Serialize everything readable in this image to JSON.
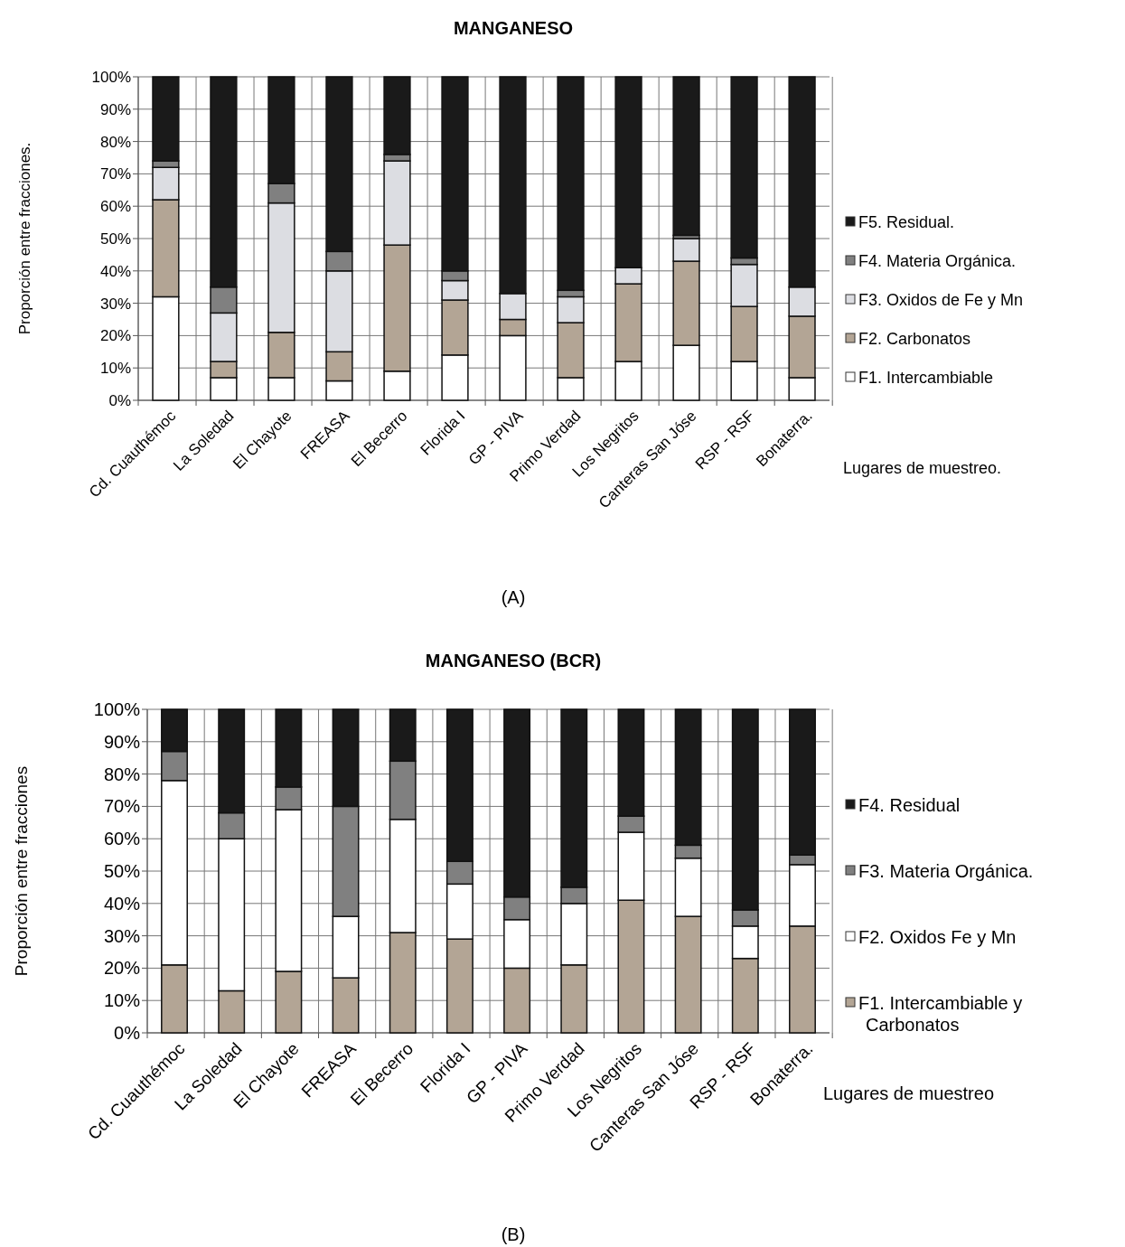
{
  "chart_data": [
    {
      "type": "bar",
      "title": "MANGANESO",
      "xlabel": "Lugares de muestreo.",
      "ylabel": "Proporción entre fracciones.",
      "annotations": [
        "(A)"
      ],
      "stacked": true,
      "grid": true,
      "legend": "right",
      "ylim": [
        0,
        100
      ],
      "yticks": [
        {
          "value": 0,
          "label": "0%"
        },
        {
          "value": 10,
          "label": "10%"
        },
        {
          "value": 20,
          "label": "20%"
        },
        {
          "value": 30,
          "label": "30%"
        },
        {
          "value": 40,
          "label": "40%"
        },
        {
          "value": 50,
          "label": "50%"
        },
        {
          "value": 60,
          "label": "60%"
        },
        {
          "value": 70,
          "label": "70%"
        },
        {
          "value": 80,
          "label": "80%"
        },
        {
          "value": 90,
          "label": "90%"
        },
        {
          "value": 100,
          "label": "100%"
        }
      ],
      "categories": [
        "Cd. Cuauthémoc",
        "La Soledad",
        "El Chayote",
        "FREASA",
        "El Becerro",
        "Florida I",
        "GP - PIVA",
        "Primo Verdad",
        "Los Negritos",
        "Canteras San Jóse",
        "RSP - RSF",
        "Bonaterra."
      ],
      "series": [
        {
          "name": "F1. Intercambiable",
          "color": "#ffffff",
          "values": [
            32,
            7,
            7,
            6,
            9,
            14,
            20,
            7,
            12,
            17,
            12,
            7
          ]
        },
        {
          "name": "F2. Carbonatos",
          "color": "#b3a595",
          "values": [
            30,
            5,
            14,
            9,
            39,
            17,
            5,
            17,
            24,
            26,
            17,
            19
          ]
        },
        {
          "name": "F3. Oxidos de Fe y Mn",
          "color": "#dcdde2",
          "values": [
            10,
            15,
            40,
            25,
            26,
            6,
            8,
            8,
            5,
            7,
            13,
            9
          ]
        },
        {
          "name": "F4. Materia Orgánica.",
          "color": "#808080",
          "values": [
            2,
            8,
            6,
            6,
            2,
            3,
            0,
            2,
            0,
            1,
            2,
            0
          ]
        },
        {
          "name": "F5. Residual.",
          "color": "#1a1a1a",
          "values": [
            26,
            65,
            33,
            54,
            24,
            60,
            67,
            66,
            59,
            49,
            56,
            65
          ]
        }
      ]
    },
    {
      "type": "bar",
      "title": "MANGANESO (BCR)",
      "xlabel": "Lugares de muestreo",
      "ylabel": "Proporción entre fracciones",
      "annotations": [
        "(B)"
      ],
      "stacked": true,
      "grid": true,
      "legend": "right",
      "ylim": [
        0,
        100
      ],
      "yticks": [
        {
          "value": 0,
          "label": "0%"
        },
        {
          "value": 10,
          "label": "10%"
        },
        {
          "value": 20,
          "label": "20%"
        },
        {
          "value": 30,
          "label": "30%"
        },
        {
          "value": 40,
          "label": "40%"
        },
        {
          "value": 50,
          "label": "50%"
        },
        {
          "value": 60,
          "label": "60%"
        },
        {
          "value": 70,
          "label": "70%"
        },
        {
          "value": 80,
          "label": "80%"
        },
        {
          "value": 90,
          "label": "90%"
        },
        {
          "value": 100,
          "label": "100%"
        }
      ],
      "categories": [
        "Cd. Cuauthémoc",
        "La Soledad",
        "El Chayote",
        "FREASA",
        "El Becerro",
        "Florida I",
        "GP - PIVA",
        "Primo Verdad",
        "Los Negritos",
        "Canteras San Jóse",
        "RSP - RSF",
        "Bonaterra."
      ],
      "series": [
        {
          "name": "F1. Intercambiable y Carbonatos",
          "color": "#b3a595",
          "values": [
            21,
            13,
            19,
            17,
            31,
            29,
            20,
            21,
            41,
            36,
            23,
            33
          ]
        },
        {
          "name": "F2. Oxidos Fe y Mn",
          "color": "#ffffff",
          "values": [
            57,
            47,
            50,
            19,
            35,
            17,
            15,
            19,
            21,
            18,
            10,
            19
          ]
        },
        {
          "name": "F3. Materia Orgánica.",
          "color": "#808080",
          "values": [
            9,
            8,
            7,
            34,
            18,
            7,
            7,
            5,
            5,
            4,
            5,
            3
          ]
        },
        {
          "name": "F4. Residual",
          "color": "#1a1a1a",
          "values": [
            13,
            32,
            24,
            30,
            16,
            47,
            58,
            55,
            33,
            42,
            62,
            45
          ]
        }
      ]
    }
  ]
}
